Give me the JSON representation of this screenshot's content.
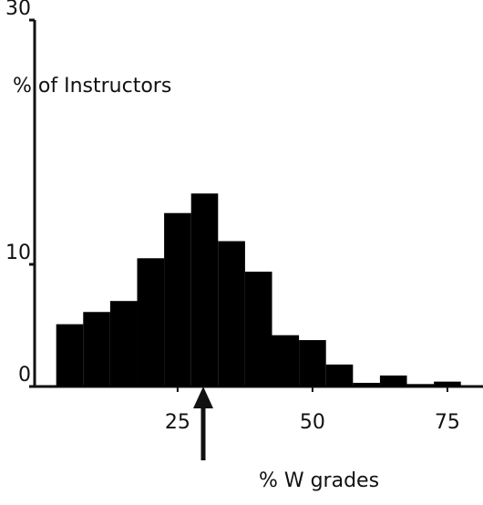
{
  "chart_data": {
    "type": "histogram",
    "ylabel": "% of Instructors",
    "xlabel": "% W grades",
    "bins": [
      2.5,
      7.5,
      12.5,
      17.5,
      22.5,
      27.5,
      32.5,
      37.5,
      42.5,
      47.5,
      52.5,
      57.5,
      62.5,
      67.5,
      72.5,
      77.5
    ],
    "values": [
      5.1,
      6.1,
      7.0,
      10.5,
      14.2,
      15.8,
      11.9,
      9.4,
      4.2,
      3.8,
      1.8,
      0.3,
      0.9,
      0.2,
      0.4
    ],
    "color": "#000000",
    "xlim": [
      -1.5,
      81.6
    ],
    "xticks": [
      25,
      50,
      75
    ],
    "ylim": [
      0,
      30
    ],
    "yticks": [
      0,
      10,
      30
    ]
  }
}
